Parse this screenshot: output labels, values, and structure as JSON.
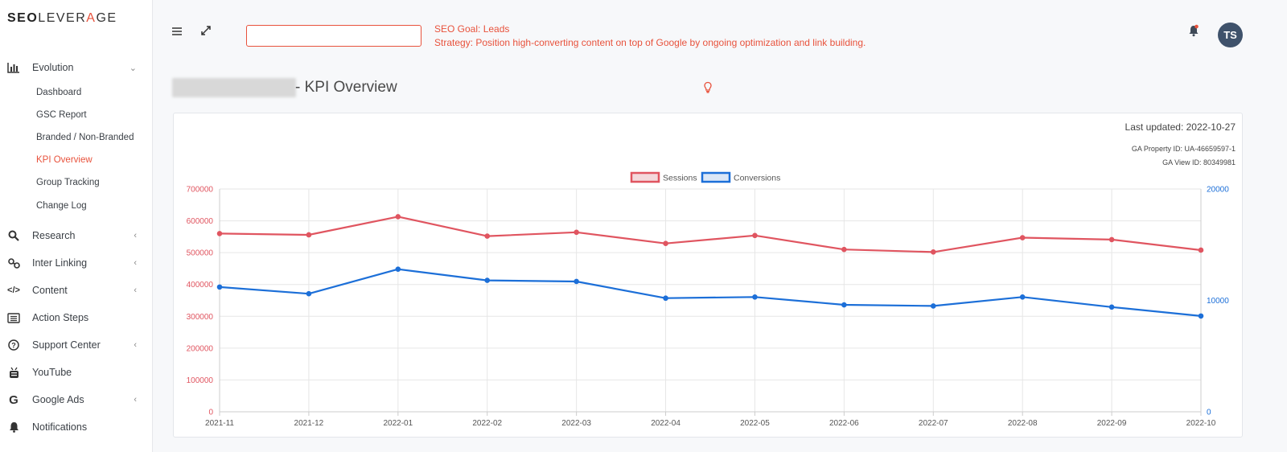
{
  "logo": {
    "bold": "SEO",
    "rest_before": "LEVER",
    "accent": "A",
    "rest_after": "GE"
  },
  "sidebar": {
    "items": [
      {
        "label": "Evolution",
        "icon": "bar-chart-icon",
        "chevron": "expanded"
      },
      {
        "label": "Research",
        "icon": "search-icon",
        "chevron": "collapsed"
      },
      {
        "label": "Inter Linking",
        "icon": "link-icon",
        "chevron": "collapsed"
      },
      {
        "label": "Content",
        "icon": "code-icon",
        "chevron": "collapsed"
      },
      {
        "label": "Action Steps",
        "icon": "list-icon"
      },
      {
        "label": "Support Center",
        "icon": "question-circle-icon",
        "chevron": "collapsed"
      },
      {
        "label": "YouTube",
        "icon": "youtube-icon"
      },
      {
        "label": "Google Ads",
        "icon": "google-icon",
        "chevron": "collapsed"
      },
      {
        "label": "Notifications",
        "icon": "bell-icon"
      }
    ],
    "subitems": [
      "Dashboard",
      "GSC Report",
      "Branded / Non-Branded",
      "KPI Overview",
      "Group Tracking",
      "Change Log"
    ],
    "active_subitem": "KPI Overview"
  },
  "topbar": {
    "goal_line": "SEO Goal: Leads",
    "strategy_line": "Strategy: Position high-converting content on top of Google by ongoing optimization and link building.",
    "avatar_initials": "TS"
  },
  "page": {
    "title_suffix": "- KPI Overview"
  },
  "card": {
    "last_updated": "Last updated: 2022-10-27",
    "ga_property": "GA Property ID: UA-46659597-1",
    "ga_view": "GA View ID: 80349981"
  },
  "colors": {
    "accent": "#e8523c",
    "sessions": "#e05560",
    "conversions": "#1c6fd8"
  },
  "chart_data": {
    "type": "line",
    "categories": [
      "2021-11",
      "2021-12",
      "2022-01",
      "2022-02",
      "2022-03",
      "2022-04",
      "2022-05",
      "2022-06",
      "2022-07",
      "2022-08",
      "2022-09",
      "2022-10"
    ],
    "series": [
      {
        "name": "Sessions",
        "axis": "left",
        "values": [
          560000,
          556000,
          613000,
          552000,
          564000,
          529000,
          554000,
          510000,
          502000,
          547000,
          541000,
          508000
        ]
      },
      {
        "name": "Conversions",
        "axis": "right",
        "values": [
          11200,
          10600,
          12800,
          11800,
          11700,
          10200,
          10300,
          9600,
          9500,
          10300,
          9400,
          8600
        ]
      }
    ],
    "y_left": {
      "ticks": [
        "0",
        "100000",
        "200000",
        "300000",
        "400000",
        "500000",
        "600000",
        "700000"
      ],
      "range": [
        0,
        700000
      ]
    },
    "y_right": {
      "ticks": [
        "0",
        "10000",
        "20000"
      ],
      "range": [
        0,
        20000
      ]
    },
    "legend": "top-center",
    "grid": true
  }
}
